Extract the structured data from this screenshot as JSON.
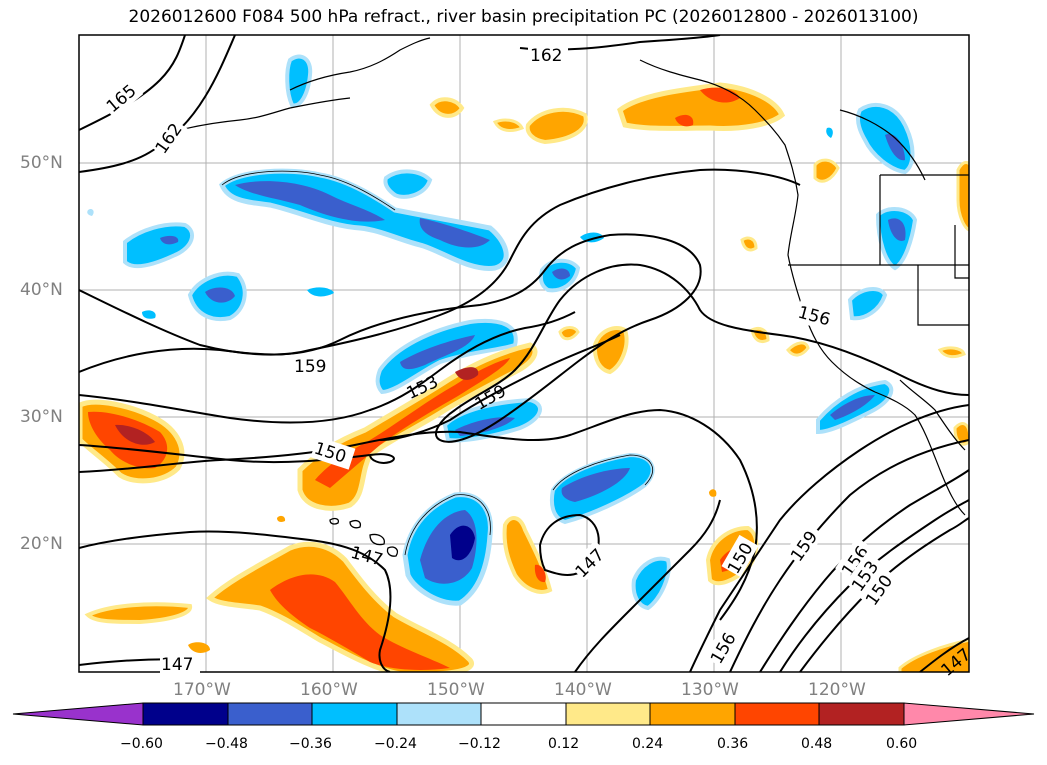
{
  "title": "2026012600 F084 500 hPa refract., river basin precipitation PC (2026012800 - 2026013100)",
  "lat_labels": [
    "50°N",
    "40°N",
    "30°N",
    "20°N"
  ],
  "lon_labels": [
    "170°W",
    "160°W",
    "150°W",
    "140°W",
    "130°W",
    "120°W"
  ],
  "contour_labels": [
    "165",
    "162",
    "162",
    "159",
    "153",
    "159",
    "150",
    "147",
    "147",
    "150",
    "156",
    "159",
    "156",
    "153",
    "150",
    "156",
    "147",
    "147"
  ],
  "colorbar": {
    "ticks": [
      "−0.60",
      "−0.48",
      "−0.36",
      "−0.24",
      "−0.12",
      "0.12",
      "0.24",
      "0.36",
      "0.48",
      "0.60"
    ],
    "colors": [
      "#9932CC",
      "#00008B",
      "#3A5FCD",
      "#00BFFF",
      "#ADE1FA",
      "#FFFFFF",
      "#FFE989",
      "#FFA500",
      "#FF4500",
      "#B22222",
      "#FF88AA"
    ]
  },
  "colors": {
    "grid": "#b0b0b0",
    "axis_label": "#808080",
    "contour": "#000000"
  }
}
